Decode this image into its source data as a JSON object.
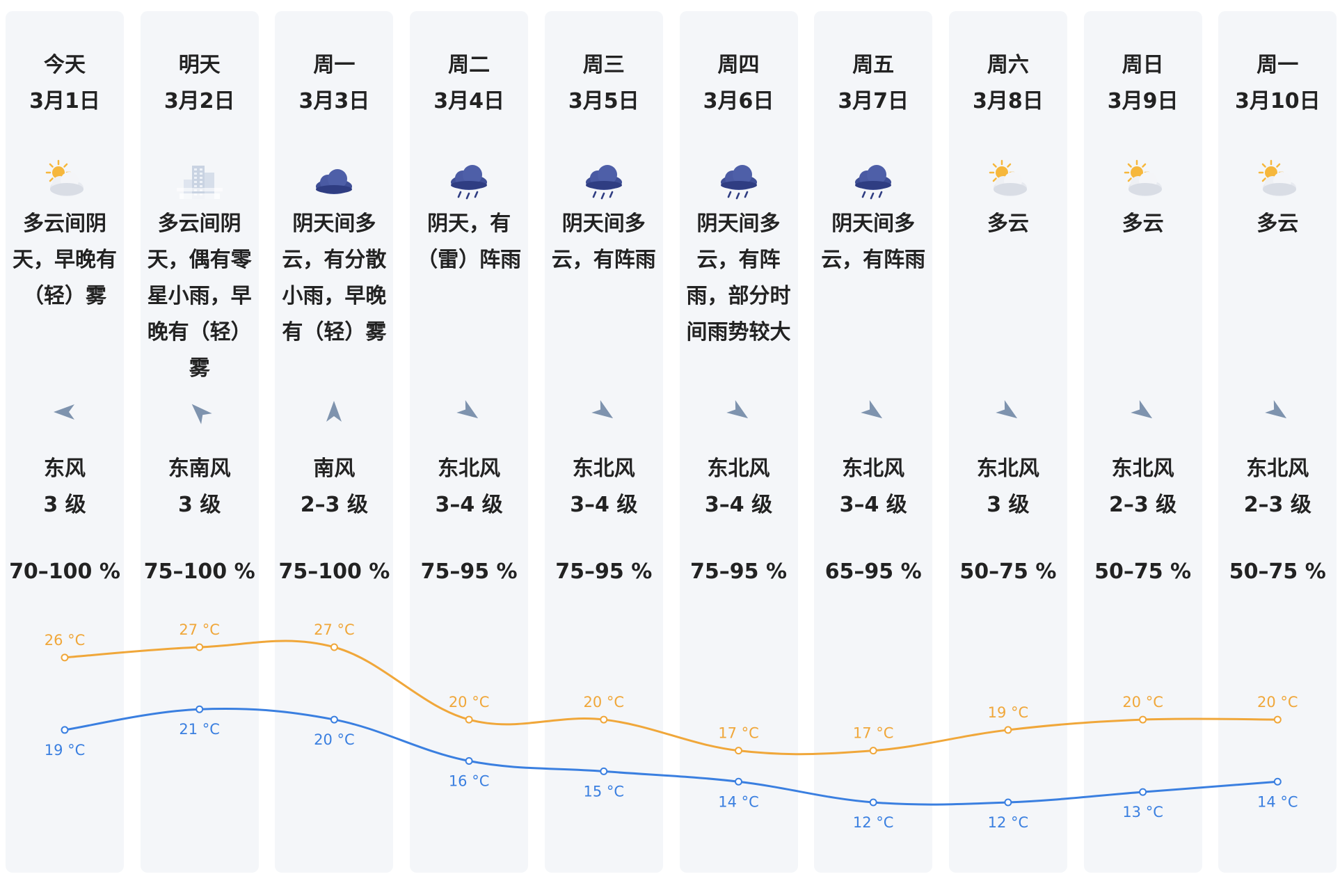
{
  "days": [
    {
      "name": "今天",
      "date": "3月1日",
      "icon": "partly-cloudy-icon",
      "condition": "多云间阴天，早晚有（轻）雾",
      "wind_dir": "东风",
      "wind_level": "3 级",
      "wind_arrow_deg": 180,
      "humidity": "70–100 %",
      "high": 26,
      "high_label": "26 °C",
      "low": 19,
      "low_label": "19 °C"
    },
    {
      "name": "明天",
      "date": "3月2日",
      "icon": "fog-buildings-icon",
      "condition": "多云间阴天，偶有零星小雨，早晚有（轻）雾",
      "wind_dir": "东南风",
      "wind_level": "3 级",
      "wind_arrow_deg": 225,
      "humidity": "75–100 %",
      "high": 27,
      "high_label": "27 °C",
      "low": 21,
      "low_label": "21 °C"
    },
    {
      "name": "周一",
      "date": "3月3日",
      "icon": "cloudy-icon",
      "condition": "阴天间多云，有分散小雨，早晚有（轻）雾",
      "wind_dir": "南风",
      "wind_level": "2–3 级",
      "wind_arrow_deg": 270,
      "humidity": "75–100 %",
      "high": 27,
      "high_label": "27 °C",
      "low": 20,
      "low_label": "20 °C"
    },
    {
      "name": "周二",
      "date": "3月4日",
      "icon": "rain-icon",
      "condition": "阴天，有（雷）阵雨",
      "wind_dir": "东北风",
      "wind_level": "3–4 级",
      "wind_arrow_deg": 35,
      "humidity": "75–95 %",
      "high": 20,
      "high_label": "20 °C",
      "low": 16,
      "low_label": "16 °C"
    },
    {
      "name": "周三",
      "date": "3月5日",
      "icon": "rain-icon",
      "condition": "阴天间多云，有阵雨",
      "wind_dir": "东北风",
      "wind_level": "3–4 级",
      "wind_arrow_deg": 35,
      "humidity": "75–95 %",
      "high": 20,
      "high_label": "20 °C",
      "low": 15,
      "low_label": "15 °C"
    },
    {
      "name": "周四",
      "date": "3月6日",
      "icon": "rain-icon",
      "condition": "阴天间多云，有阵雨，部分时间雨势较大",
      "wind_dir": "东北风",
      "wind_level": "3–4 级",
      "wind_arrow_deg": 35,
      "humidity": "75–95 %",
      "high": 17,
      "high_label": "17 °C",
      "low": 14,
      "low_label": "14 °C"
    },
    {
      "name": "周五",
      "date": "3月7日",
      "icon": "rain-icon",
      "condition": "阴天间多云，有阵雨",
      "wind_dir": "东北风",
      "wind_level": "3–4 级",
      "wind_arrow_deg": 35,
      "humidity": "65–95 %",
      "high": 17,
      "high_label": "17 °C",
      "low": 12,
      "low_label": "12 °C"
    },
    {
      "name": "周六",
      "date": "3月8日",
      "icon": "partly-cloudy-icon",
      "condition": "多云",
      "wind_dir": "东北风",
      "wind_level": "3 级",
      "wind_arrow_deg": 35,
      "humidity": "50–75 %",
      "high": 19,
      "high_label": "19 °C",
      "low": 12,
      "low_label": "12 °C"
    },
    {
      "name": "周日",
      "date": "3月9日",
      "icon": "partly-cloudy-icon",
      "condition": "多云",
      "wind_dir": "东北风",
      "wind_level": "2–3 级",
      "wind_arrow_deg": 35,
      "humidity": "50–75 %",
      "high": 20,
      "high_label": "20 °C",
      "low": 13,
      "low_label": "13 °C"
    },
    {
      "name": "周一",
      "date": "3月10日",
      "icon": "partly-cloudy-icon",
      "condition": "多云",
      "wind_dir": "东北风",
      "wind_level": "2–3 级",
      "wind_arrow_deg": 35,
      "humidity": "50–75 %",
      "high": 20,
      "high_label": "20 °C",
      "low": 14,
      "low_label": "14 °C"
    }
  ],
  "colors": {
    "column_bg": "#f4f6f9",
    "high_line": "#f0a73a",
    "low_line": "#3a7fe0",
    "wind_arrow": "#7e93ae",
    "cloud_dark": "#3f4f96",
    "sun": "#f6b73c"
  }
}
